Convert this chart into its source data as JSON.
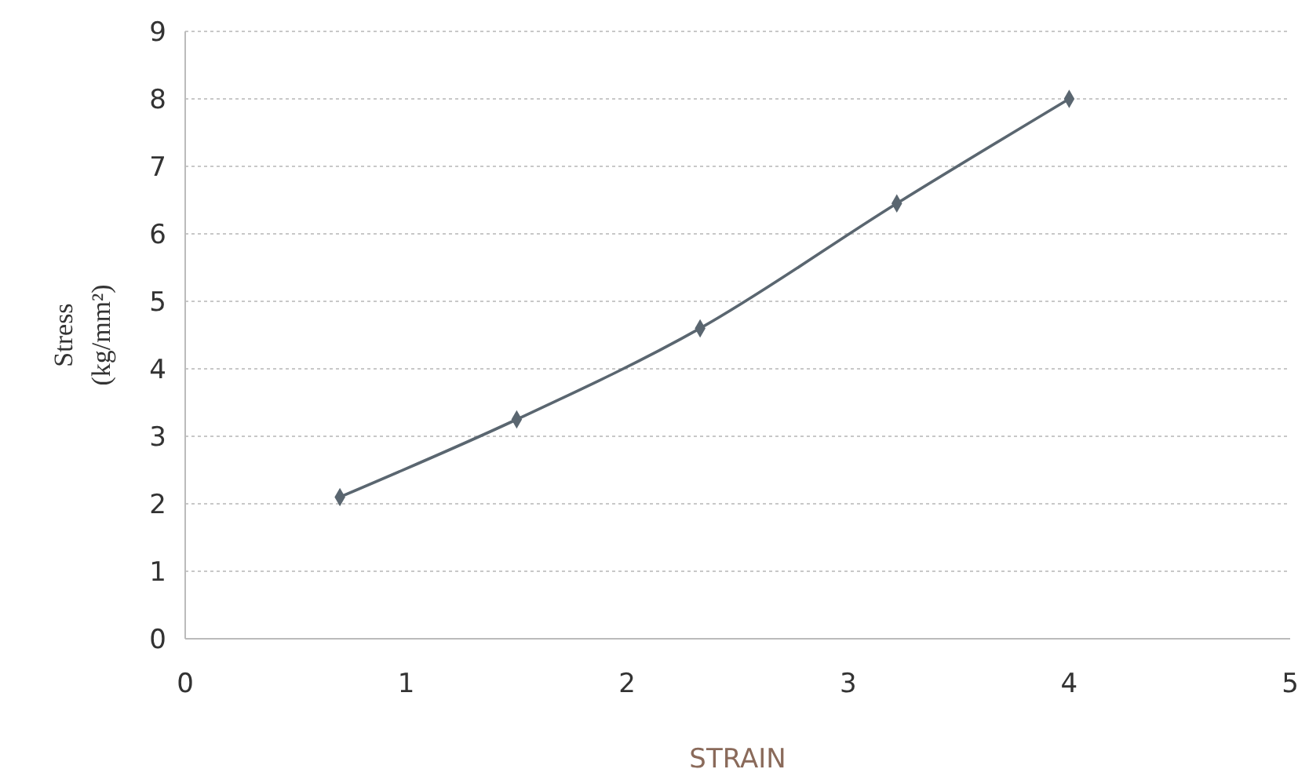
{
  "chart_data": {
    "type": "line",
    "xlabel": "STRAIN",
    "ylabel": "Stress\n(kg/mm²)",
    "x": [
      0.7,
      1.5,
      2.33,
      3.22,
      4
    ],
    "series": [
      {
        "color": "#5a6670",
        "values": [
          2.1,
          3.25,
          4.6,
          6.45,
          8
        ]
      }
    ],
    "xlim": [
      0,
      5
    ],
    "xticks": [
      0,
      1,
      2,
      3,
      4,
      5
    ],
    "ylim": [
      0,
      9
    ],
    "yticks": [
      0,
      1,
      2,
      3,
      4,
      5,
      6,
      7,
      8,
      9
    ],
    "grid": "y",
    "marker": "diamond",
    "line_style": "solid"
  }
}
